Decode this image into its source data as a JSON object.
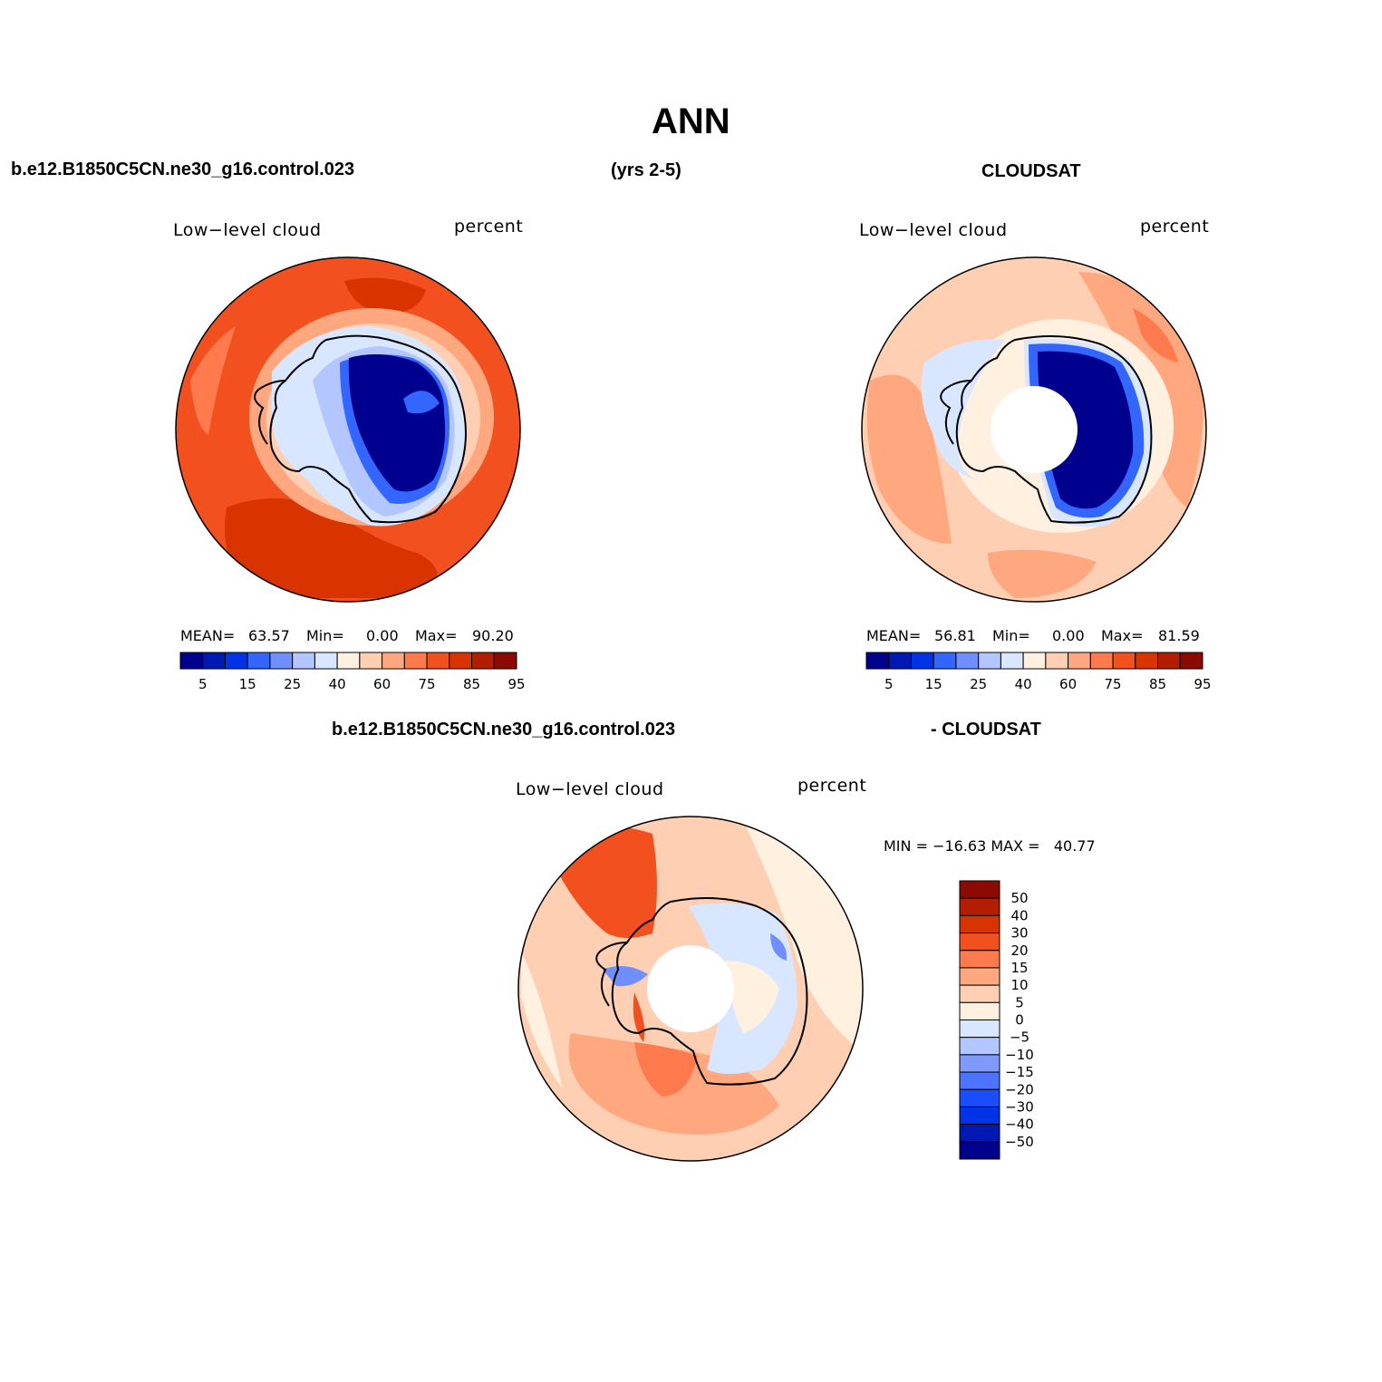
{
  "title": "ANN",
  "header": {
    "case_name": "b.e12.B1850C5CN.ne30_g16.control.023",
    "years": "(yrs 2-5)",
    "obs_name": "CLOUDSAT"
  },
  "panels": [
    {
      "id": "model",
      "variable": "Low−level cloud",
      "units": "percent",
      "stats": {
        "mean_label": "MEAN=",
        "mean": "63.57",
        "min_label": "Min=",
        "min": "0.00",
        "max_label": "Max=",
        "max": "90.20"
      }
    },
    {
      "id": "obs",
      "variable": "Low−level cloud",
      "units": "percent",
      "stats": {
        "mean_label": "MEAN=",
        "mean": "56.81",
        "min_label": "Min=",
        "min": "0.00",
        "max_label": "Max=",
        "max": "81.59"
      }
    }
  ],
  "diff_panel": {
    "title_left": "b.e12.B1850C5CN.ne30_g16.control.023",
    "title_right": "- CLOUDSAT",
    "variable": "Low−level cloud",
    "units": "percent",
    "minmax": "MIN = −16.63 MAX =   40.77"
  },
  "colorbar_main": {
    "colors": [
      "#00008f",
      "#0019b3",
      "#0033e6",
      "#3366ff",
      "#6f8fff",
      "#b3c6ff",
      "#d9e6ff",
      "#fff0e0",
      "#ffcfb3",
      "#ffa87f",
      "#ff7a4d",
      "#f2511f",
      "#d93300",
      "#b31d00",
      "#8c0a00"
    ],
    "tick_labels": [
      "5",
      "15",
      "25",
      "40",
      "60",
      "75",
      "85",
      "95"
    ]
  },
  "colorbar_diff": {
    "colors": [
      "#00008f",
      "#0019b3",
      "#0033e6",
      "#1a4dff",
      "#4d73ff",
      "#8099ff",
      "#b3c6ff",
      "#d9e6ff",
      "#fff0e0",
      "#ffcfb3",
      "#ffa87f",
      "#ff7a4d",
      "#f2511f",
      "#d93300",
      "#b31d00",
      "#8c0a00"
    ],
    "tick_labels": [
      "50",
      "40",
      "30",
      "20",
      "15",
      "10",
      "5",
      "0",
      "−5",
      "−10",
      "−15",
      "−20",
      "−30",
      "−40",
      "−50"
    ]
  }
}
